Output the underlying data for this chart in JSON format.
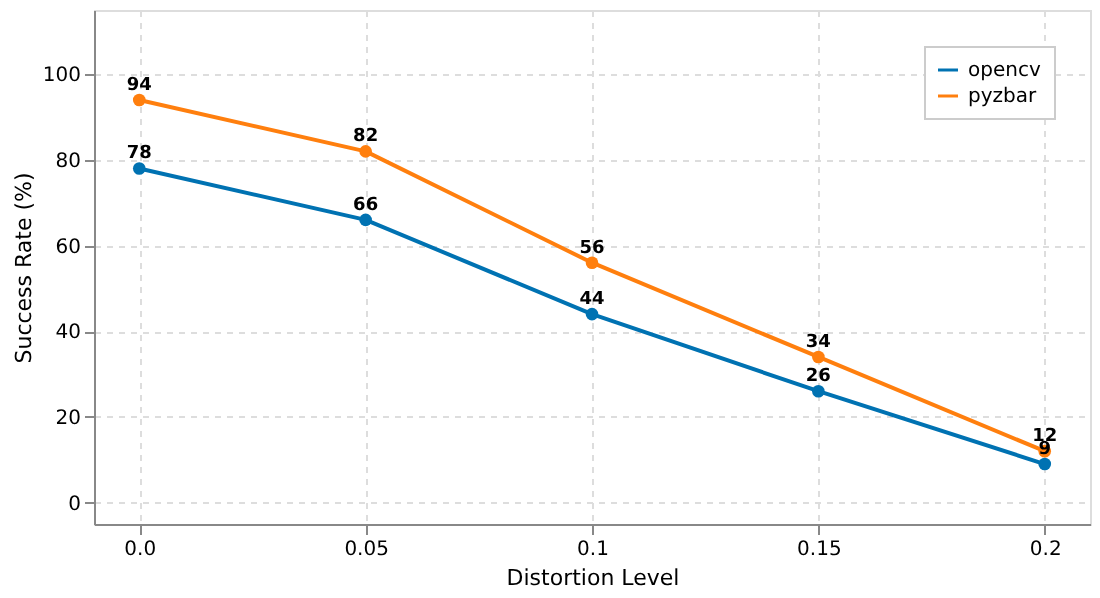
{
  "chart_data": {
    "type": "line",
    "xlabel": "Distortion Level",
    "ylabel": "Success Rate (%)",
    "x": [
      0.0,
      0.05,
      0.1,
      0.15,
      0.2
    ],
    "series": [
      {
        "name": "opencv",
        "color": "#0072b2",
        "values": [
          78,
          66,
          44,
          26,
          9
        ]
      },
      {
        "name": "pyzbar",
        "color": "#ff7f0e",
        "values": [
          94,
          82,
          56,
          34,
          12
        ]
      }
    ],
    "xlim": [
      -0.01,
      0.21
    ],
    "xticks": [
      {
        "value": 0,
        "label": "0.0"
      },
      0.05,
      0.1,
      0.15,
      0.2
    ],
    "ylim": [
      -5,
      115
    ],
    "yticks": [
      0,
      20,
      40,
      60,
      80,
      100
    ],
    "grid": true,
    "legend": "top right",
    "marker": "circle",
    "line_style": "solid",
    "data_labels": true
  }
}
